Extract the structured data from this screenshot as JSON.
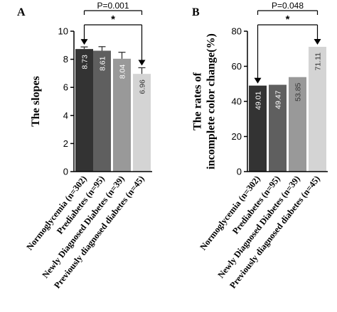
{
  "chart_data": [
    {
      "type": "bar",
      "panel_label": "A",
      "title": "",
      "xlabel": "",
      "ylabel": "The slopes",
      "ylim": [
        0,
        10
      ],
      "yticks": [
        "0",
        "2",
        "4",
        "6",
        "8",
        "10"
      ],
      "categories": [
        "Normoglycemia (n=302)",
        "Prediabetes (n=95)",
        "Newly Diagnosed Diabetes (n=39)",
        "Previously diagnosed diabetes (n=45)"
      ],
      "values": [
        8.73,
        8.61,
        8.04,
        6.96
      ],
      "value_labels": [
        "8.73",
        "8.61",
        "8.04",
        "6.96"
      ],
      "error_upper": [
        8.88,
        8.9,
        8.5,
        7.4
      ],
      "colors": [
        "#333333",
        "#5f5f5f",
        "#999999",
        "#d4d4d4"
      ],
      "label_colors": [
        "#ffffff",
        "#ffffff",
        "#ffffff",
        "#333333"
      ],
      "annotation": {
        "text": "P=0.001",
        "significance": "*"
      }
    },
    {
      "type": "bar",
      "panel_label": "B",
      "title": "",
      "xlabel": "",
      "ylabel": [
        "The rates of",
        "incomplete color change(%)"
      ],
      "ylim": [
        0,
        80
      ],
      "yticks": [
        "0",
        "20",
        "40",
        "60",
        "80"
      ],
      "categories": [
        "Normoglycemia (n=302)",
        "Prediabetes (n=95)",
        "Newly Diagnosed Diabetes (n=39)",
        "Previously diagnosed diabetes (n=45)"
      ],
      "values": [
        49.01,
        49.47,
        53.85,
        71.11
      ],
      "value_labels": [
        "49.01",
        "49.47",
        "53.85",
        "71.11"
      ],
      "colors": [
        "#333333",
        "#5f5f5f",
        "#999999",
        "#d4d4d4"
      ],
      "label_colors": [
        "#ffffff",
        "#ffffff",
        "#333333",
        "#333333"
      ],
      "annotation": {
        "text": "P=0.048",
        "significance": "*"
      }
    }
  ]
}
